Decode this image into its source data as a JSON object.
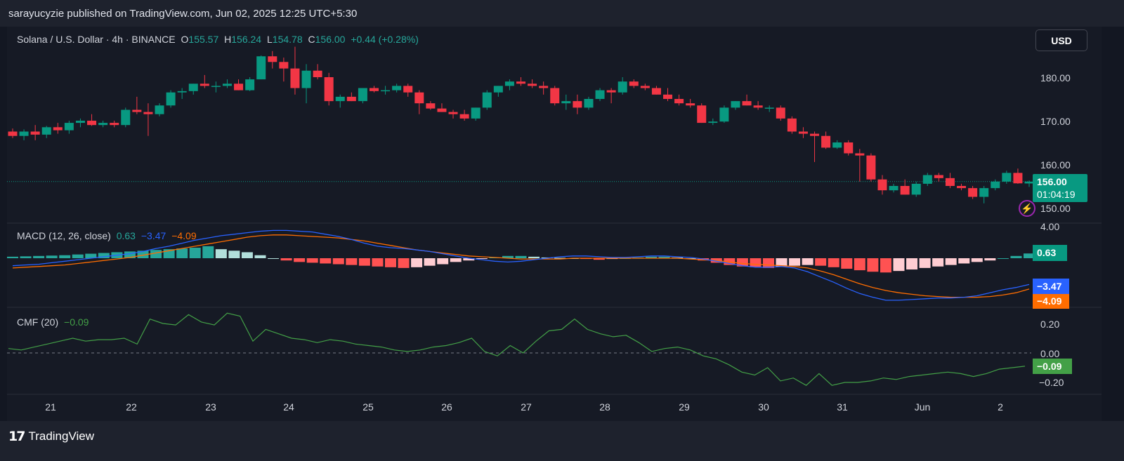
{
  "header": {
    "published": "sarayucyzie published on TradingView.com, Jun 02, 2025 12:25 UTC+5:30"
  },
  "footer": {
    "brand": "TradingView",
    "brand_mark": "17"
  },
  "currency_button": "USD",
  "colors": {
    "up": "#089981",
    "down": "#f23645",
    "macd": "#2962ff",
    "signal": "#ff6d00",
    "cmf": "#43a047",
    "hist_up": "#b2dfdb",
    "hist_down": "#ffcdd2",
    "background": "#131722"
  },
  "price_legend": {
    "symbol": "Solana / U.S. Dollar · 4h · BINANCE",
    "o_label": "O",
    "o": "155.57",
    "h_label": "H",
    "h": "156.24",
    "l_label": "L",
    "l": "154.78",
    "c_label": "C",
    "c": "156.00",
    "change": "+0.44 (+0.28%)"
  },
  "macd_legend": {
    "name": "MACD (12, 26, close)",
    "hist": "0.63",
    "macd": "−3.47",
    "signal": "−4.09"
  },
  "cmf_legend": {
    "name": "CMF (20)",
    "value": "−0.09"
  },
  "price_axis": [
    "180.00",
    "170.00",
    "160.00",
    "150.00"
  ],
  "price_badge": {
    "price": "156.00",
    "countdown": "01:04:19"
  },
  "macd_axis": [
    "4.00",
    "0.00"
  ],
  "macd_badges": {
    "hist": "0.63",
    "macd": "−3.47",
    "signal": "−4.09"
  },
  "cmf_axis": [
    "0.20",
    "0.00",
    "−0.20"
  ],
  "cmf_badge": "−0.09",
  "x_labels": [
    "21",
    "22",
    "23",
    "24",
    "25",
    "26",
    "27",
    "28",
    "29",
    "30",
    "31",
    "Jun",
    "2"
  ],
  "chart_data": [
    {
      "type": "candlestick",
      "title": "Solana / U.S. Dollar · 4h · BINANCE",
      "x_ticks": [
        "21",
        "22",
        "23",
        "24",
        "25",
        "26",
        "27",
        "28",
        "29",
        "30",
        "31",
        "Jun",
        "2"
      ],
      "ylim": [
        148,
        185
      ],
      "y_ticks": [
        180,
        170,
        160,
        150
      ],
      "last_price": 156.0,
      "ohlc": [
        [
          167.5,
          168.2,
          166.0,
          166.5
        ],
        [
          166.5,
          168.0,
          165.5,
          167.5
        ],
        [
          167.5,
          169.0,
          165.5,
          166.8
        ],
        [
          166.8,
          168.8,
          166.0,
          168.5
        ],
        [
          168.5,
          169.5,
          167.0,
          167.8
        ],
        [
          167.8,
          170.0,
          167.0,
          169.5
        ],
        [
          169.5,
          170.5,
          168.5,
          170.0
        ],
        [
          170.0,
          171.5,
          168.8,
          169.0
        ],
        [
          169.0,
          170.0,
          168.5,
          169.5
        ],
        [
          169.5,
          170.0,
          168.5,
          169.0
        ],
        [
          169.0,
          173.0,
          168.5,
          172.5
        ],
        [
          172.5,
          175.5,
          171.5,
          172.0
        ],
        [
          172.0,
          174.0,
          166.5,
          171.5
        ],
        [
          171.5,
          174.0,
          171.0,
          173.5
        ],
        [
          173.5,
          177.0,
          173.0,
          176.5
        ],
        [
          176.5,
          177.5,
          175.0,
          176.8
        ],
        [
          176.8,
          178.5,
          176.0,
          178.5
        ],
        [
          178.5,
          180.5,
          177.5,
          178.0
        ],
        [
          178.0,
          179.0,
          176.5,
          178.0
        ],
        [
          178.0,
          179.5,
          177.5,
          178.5
        ],
        [
          178.5,
          179.5,
          177.0,
          177.0
        ],
        [
          177.0,
          180.0,
          176.8,
          179.5
        ],
        [
          179.5,
          185.0,
          179.5,
          184.8
        ],
        [
          184.8,
          186.0,
          182.0,
          183.5
        ],
        [
          183.5,
          184.5,
          179.0,
          182.0
        ],
        [
          182.0,
          187.0,
          176.0,
          177.5
        ],
        [
          177.5,
          183.0,
          174.0,
          181.5
        ],
        [
          181.5,
          183.0,
          179.5,
          180.0
        ],
        [
          180.0,
          181.0,
          173.5,
          174.5
        ],
        [
          174.5,
          176.0,
          173.0,
          175.5
        ],
        [
          175.5,
          176.5,
          174.5,
          174.5
        ],
        [
          174.5,
          177.5,
          174.0,
          177.5
        ],
        [
          177.5,
          178.0,
          176.5,
          176.8
        ],
        [
          176.8,
          178.0,
          176.0,
          177.0
        ],
        [
          177.0,
          178.5,
          176.5,
          178.0
        ],
        [
          178.0,
          178.5,
          175.5,
          176.5
        ],
        [
          176.5,
          177.0,
          171.5,
          174.0
        ],
        [
          174.0,
          174.5,
          172.5,
          172.8
        ],
        [
          172.8,
          174.0,
          172.0,
          172.0
        ],
        [
          172.0,
          172.5,
          170.5,
          171.5
        ],
        [
          171.5,
          172.5,
          170.0,
          170.5
        ],
        [
          170.5,
          173.0,
          170.0,
          173.0
        ],
        [
          173.0,
          177.0,
          172.5,
          176.5
        ],
        [
          176.5,
          178.0,
          175.5,
          178.0
        ],
        [
          178.0,
          179.5,
          177.0,
          179.0
        ],
        [
          179.0,
          180.0,
          178.0,
          178.5
        ],
        [
          178.5,
          179.5,
          177.5,
          178.0
        ],
        [
          178.0,
          179.0,
          176.0,
          177.5
        ],
        [
          177.5,
          178.0,
          173.5,
          174.0
        ],
        [
          174.0,
          176.0,
          172.5,
          174.5
        ],
        [
          174.5,
          176.0,
          171.5,
          173.0
        ],
        [
          173.0,
          175.5,
          172.5,
          175.0
        ],
        [
          175.0,
          177.5,
          174.5,
          177.0
        ],
        [
          177.0,
          177.5,
          174.0,
          176.5
        ],
        [
          176.5,
          180.0,
          176.0,
          179.0
        ],
        [
          179.0,
          179.5,
          177.5,
          178.0
        ],
        [
          178.0,
          178.5,
          177.0,
          177.5
        ],
        [
          177.5,
          178.0,
          176.0,
          176.0
        ],
        [
          176.0,
          177.5,
          174.5,
          175.0
        ],
        [
          175.0,
          176.0,
          173.5,
          174.0
        ],
        [
          174.0,
          175.0,
          173.0,
          173.5
        ],
        [
          173.5,
          174.0,
          169.5,
          169.5
        ],
        [
          169.5,
          170.5,
          169.0,
          169.8
        ],
        [
          169.8,
          173.5,
          169.5,
          173.0
        ],
        [
          173.0,
          174.5,
          172.5,
          174.5
        ],
        [
          174.5,
          176.0,
          173.5,
          173.5
        ],
        [
          173.5,
          174.5,
          172.5,
          173.0
        ],
        [
          173.0,
          173.5,
          172.0,
          173.0
        ],
        [
          173.0,
          173.5,
          170.0,
          170.5
        ],
        [
          170.5,
          171.0,
          167.0,
          167.5
        ],
        [
          167.5,
          168.5,
          166.0,
          167.0
        ],
        [
          167.0,
          167.5,
          160.5,
          166.5
        ],
        [
          166.5,
          167.5,
          163.5,
          163.8
        ],
        [
          163.8,
          165.5,
          163.5,
          165.0
        ],
        [
          165.0,
          165.5,
          162.0,
          162.5
        ],
        [
          162.5,
          163.5,
          156.0,
          162.0
        ],
        [
          162.0,
          162.5,
          156.0,
          156.5
        ],
        [
          156.5,
          157.5,
          153.0,
          154.0
        ],
        [
          154.0,
          155.5,
          153.5,
          155.0
        ],
        [
          155.0,
          156.5,
          153.0,
          153.0
        ],
        [
          153.0,
          156.0,
          152.5,
          155.5
        ],
        [
          155.5,
          158.0,
          155.0,
          157.5
        ],
        [
          157.5,
          158.0,
          156.0,
          156.8
        ],
        [
          156.8,
          158.0,
          154.5,
          155.0
        ],
        [
          155.0,
          155.5,
          154.0,
          154.5
        ],
        [
          154.5,
          155.0,
          152.0,
          152.5
        ],
        [
          152.5,
          155.0,
          151.0,
          154.5
        ],
        [
          154.5,
          156.5,
          154.0,
          156.0
        ],
        [
          156.0,
          158.5,
          155.5,
          158.0
        ],
        [
          158.0,
          159.0,
          155.5,
          155.6
        ],
        [
          155.57,
          156.24,
          154.78,
          156.0
        ]
      ]
    },
    {
      "type": "line",
      "title": "MACD (12, 26, close)",
      "ylim": [
        -6,
        4.5
      ],
      "y_ticks": [
        4.0,
        0.0
      ],
      "series": [
        {
          "name": "MACD",
          "values": [
            -1.0,
            -0.9,
            -0.8,
            -0.6,
            -0.4,
            -0.2,
            0.0,
            0.2,
            0.4,
            0.6,
            0.9,
            1.3,
            1.6,
            2.0,
            2.4,
            2.7,
            3.0,
            3.2,
            3.4,
            3.6,
            3.7,
            3.7,
            3.6,
            3.5,
            3.2,
            2.9,
            2.5,
            2.0,
            1.6,
            1.4,
            1.3,
            1.1,
            0.9,
            0.6,
            0.3,
            0.0,
            -0.2,
            -0.4,
            -0.5,
            -0.4,
            -0.2,
            0.0,
            0.2,
            0.3,
            0.3,
            0.2,
            0.1,
            0.1,
            0.2,
            0.3,
            0.3,
            0.2,
            0.1,
            -0.1,
            -0.4,
            -0.7,
            -1.0,
            -1.2,
            -1.2,
            -1.1,
            -1.3,
            -1.8,
            -2.5,
            -3.2,
            -4.0,
            -4.7,
            -5.2,
            -5.6,
            -5.6,
            -5.5,
            -5.4,
            -5.3,
            -5.3,
            -5.2,
            -5.0,
            -4.6,
            -4.2,
            -3.9,
            -3.5
          ]
        },
        {
          "name": "Signal",
          "values": [
            -1.3,
            -1.2,
            -1.1,
            -1.0,
            -0.9,
            -0.7,
            -0.5,
            -0.3,
            -0.1,
            0.1,
            0.4,
            0.7,
            1.0,
            1.3,
            1.6,
            1.9,
            2.2,
            2.5,
            2.8,
            3.0,
            3.1,
            3.1,
            3.0,
            2.9,
            2.8,
            2.7,
            2.5,
            2.3,
            2.0,
            1.7,
            1.4,
            1.1,
            0.9,
            0.7,
            0.5,
            0.3,
            0.2,
            0.1,
            0.0,
            -0.1,
            -0.1,
            -0.1,
            -0.1,
            0.0,
            0.0,
            0.0,
            0.0,
            0.0,
            0.0,
            0.0,
            0.0,
            0.0,
            -0.1,
            -0.2,
            -0.3,
            -0.5,
            -0.7,
            -0.8,
            -0.9,
            -1.0,
            -1.1,
            -1.3,
            -1.7,
            -2.2,
            -2.8,
            -3.4,
            -3.9,
            -4.3,
            -4.6,
            -4.8,
            -5.0,
            -5.1,
            -5.2,
            -5.2,
            -5.2,
            -5.1,
            -4.9,
            -4.6,
            -4.1
          ]
        },
        {
          "name": "Histogram",
          "values": [
            0.2,
            0.25,
            0.3,
            0.35,
            0.4,
            0.5,
            0.6,
            0.7,
            0.8,
            0.9,
            1.0,
            1.1,
            1.2,
            1.3,
            1.4,
            1.6,
            1.2,
            1.0,
            0.8,
            0.4,
            0.0,
            -0.3,
            -0.5,
            -0.6,
            -0.7,
            -0.8,
            -0.9,
            -1.0,
            -1.1,
            -1.2,
            -1.3,
            -1.2,
            -1.0,
            -0.8,
            -0.5,
            -0.3,
            -0.1,
            0.1,
            0.3,
            0.3,
            0.2,
            0.1,
            0.05,
            0.0,
            -0.1,
            -0.2,
            -0.1,
            0.0,
            0.1,
            0.2,
            0.2,
            0.1,
            0.0,
            -0.3,
            -0.6,
            -0.9,
            -1.1,
            -1.2,
            -1.3,
            -1.1,
            -1.0,
            -0.9,
            -1.0,
            -1.2,
            -1.4,
            -1.6,
            -1.8,
            -1.9,
            -1.7,
            -1.5,
            -1.3,
            -1.1,
            -0.9,
            -0.7,
            -0.5,
            -0.3,
            0.0,
            0.3,
            0.63
          ]
        }
      ]
    },
    {
      "type": "line",
      "title": "CMF (20)",
      "ylim": [
        -0.26,
        0.26
      ],
      "y_ticks": [
        0.2,
        0.0,
        -0.2
      ],
      "series": [
        {
          "name": "CMF",
          "values": [
            0.03,
            0.02,
            0.04,
            0.06,
            0.08,
            0.1,
            0.08,
            0.09,
            0.09,
            0.1,
            0.06,
            0.23,
            0.2,
            0.19,
            0.26,
            0.21,
            0.19,
            0.27,
            0.25,
            0.08,
            0.16,
            0.13,
            0.1,
            0.09,
            0.07,
            0.09,
            0.08,
            0.06,
            0.05,
            0.04,
            0.02,
            0.01,
            0.02,
            0.04,
            0.05,
            0.07,
            0.1,
            0.01,
            -0.02,
            0.05,
            0.0,
            0.08,
            0.15,
            0.16,
            0.23,
            0.16,
            0.13,
            0.11,
            0.12,
            0.07,
            0.01,
            0.03,
            0.04,
            0.02,
            -0.02,
            -0.04,
            -0.08,
            -0.13,
            -0.15,
            -0.1,
            -0.19,
            -0.17,
            -0.22,
            -0.14,
            -0.22,
            -0.2,
            -0.2,
            -0.19,
            -0.17,
            -0.18,
            -0.16,
            -0.15,
            -0.14,
            -0.13,
            -0.14,
            -0.16,
            -0.14,
            -0.11,
            -0.1,
            -0.09
          ]
        }
      ]
    }
  ]
}
